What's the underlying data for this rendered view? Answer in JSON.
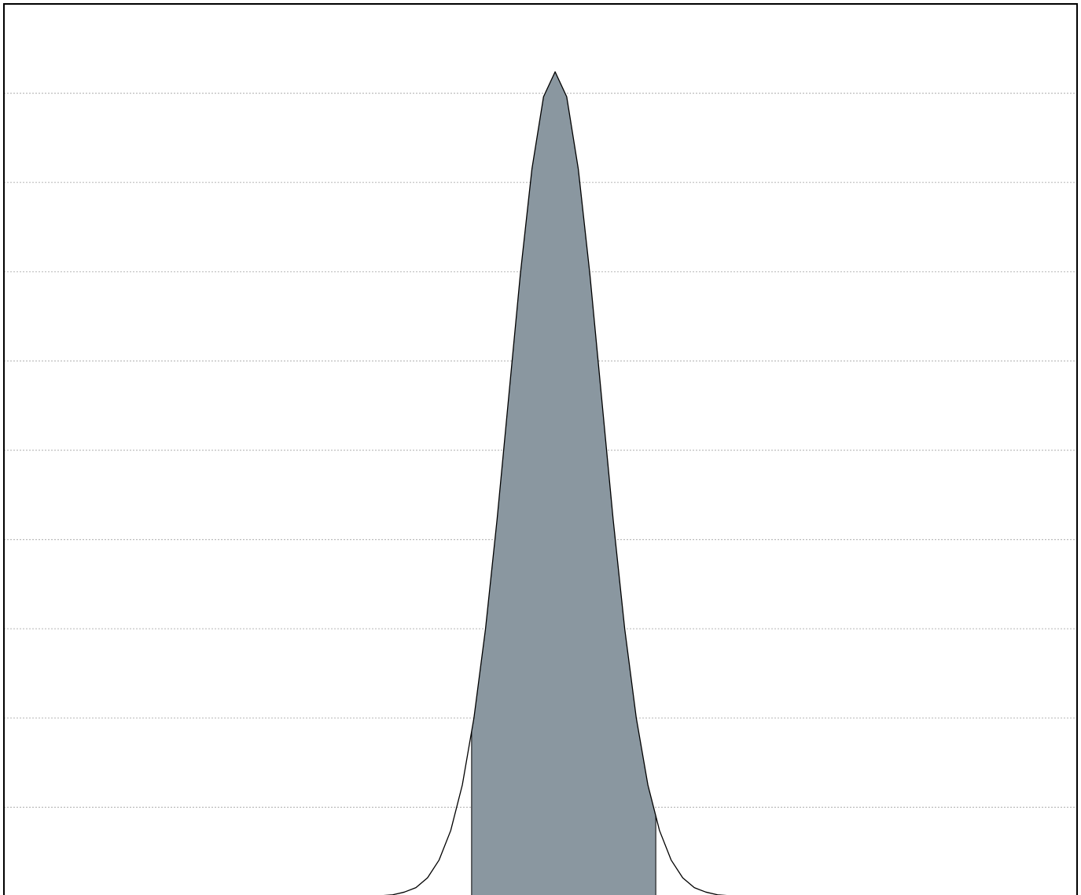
{
  "chart_data": {
    "type": "area",
    "x": [
      -4,
      -3.75,
      -3.5,
      -3.25,
      -3,
      -2.75,
      -2.5,
      -2.25,
      -2,
      -1.75,
      -1.5,
      -1.25,
      -1,
      -0.75,
      -0.5,
      -0.25,
      0,
      0.25,
      0.5,
      0.75,
      1,
      1.25,
      1.5,
      1.75,
      2,
      2.25,
      2.5,
      2.75,
      3,
      3.25,
      3.5,
      3.75,
      4
    ],
    "values": [
      0,
      0.01,
      0.02,
      0.05,
      0.1,
      0.21,
      0.41,
      0.74,
      1.25,
      2.0,
      3.0,
      4.23,
      5.6,
      6.97,
      8.15,
      8.96,
      9.24,
      8.96,
      8.15,
      6.97,
      5.6,
      4.23,
      3.0,
      2.0,
      1.25,
      0.74,
      0.41,
      0.21,
      0.1,
      0.05,
      0.02,
      0.01,
      0
    ],
    "shade": [
      -1.8,
      2.17
    ],
    "color": "#8a97a0",
    "xlim": [
      -11.88,
      11.25
    ],
    "ylim": [
      0,
      10
    ],
    "yticks": [
      1,
      2,
      3,
      4,
      5,
      6,
      7,
      8,
      9
    ],
    "grid": true
  }
}
